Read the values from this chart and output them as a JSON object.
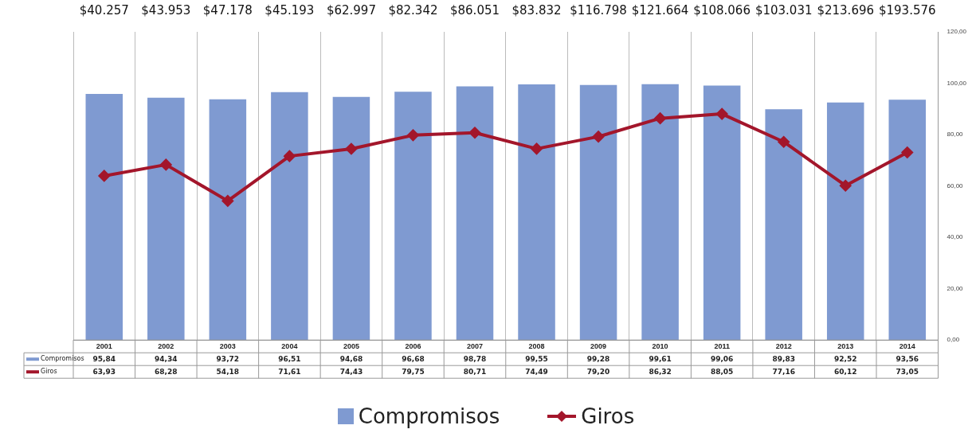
{
  "chart_data": {
    "type": "bar",
    "categories": [
      "2001",
      "2002",
      "2003",
      "2004",
      "2005",
      "2006",
      "2007",
      "2008",
      "2009",
      "2010",
      "2011",
      "2012",
      "2013",
      "2014"
    ],
    "series": [
      {
        "name": "Compromisos",
        "color": "#7f9ad1",
        "values": [
          95.84,
          94.34,
          93.72,
          96.51,
          94.68,
          96.68,
          98.78,
          99.55,
          99.28,
          99.61,
          99.06,
          89.83,
          92.52,
          93.56
        ],
        "value_labels": [
          "95,84",
          "94,34",
          "93,72",
          "96,51",
          "94,68",
          "96,68",
          "98,78",
          "99,55",
          "99,28",
          "99,61",
          "99,06",
          "89,83",
          "92,52",
          "93,56"
        ]
      },
      {
        "name": "Giros",
        "type": "line",
        "color": "#a3162b",
        "marker": "diamond",
        "values": [
          63.93,
          68.28,
          54.18,
          71.61,
          74.43,
          79.75,
          80.71,
          74.49,
          79.2,
          86.32,
          88.05,
          77.16,
          60.12,
          73.05
        ],
        "value_labels": [
          "63,93",
          "68,28",
          "54,18",
          "71,61",
          "74,43",
          "79,75",
          "80,71",
          "74,49",
          "79,20",
          "86,32",
          "88,05",
          "77,16",
          "60,12",
          "73,05"
        ]
      }
    ],
    "ylim": [
      0,
      120
    ],
    "yticks": [
      {
        "value": 0,
        "label": "0,00"
      },
      {
        "value": 20,
        "label": "20,00"
      },
      {
        "value": 40,
        "label": "40,00"
      },
      {
        "value": 60,
        "label": "60,00"
      },
      {
        "value": 80,
        "label": "80,00"
      },
      {
        "value": 100,
        "label": "100,00"
      },
      {
        "value": 120,
        "label": "120,00"
      }
    ],
    "grid": "x",
    "legend": "bottom",
    "annotations": [
      "$40.257",
      "$43.953",
      "$47.178",
      "$45.193",
      "$62.997",
      "$82.342",
      "$86.051",
      "$83.832",
      "$116.798",
      "$121.664",
      "$108.066",
      "$103.031",
      "$213.696",
      "$193.576"
    ]
  }
}
